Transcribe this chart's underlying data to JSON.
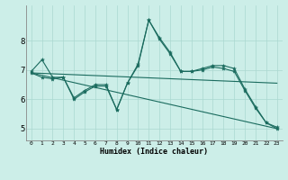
{
  "xlabel": "Humidex (Indice chaleur)",
  "background_color": "#cceee8",
  "line_color": "#1a6b5e",
  "grid_color": "#aad8d0",
  "x_ticks": [
    0,
    1,
    2,
    3,
    4,
    5,
    6,
    7,
    8,
    9,
    10,
    11,
    12,
    13,
    14,
    15,
    16,
    17,
    18,
    19,
    20,
    21,
    22,
    23
  ],
  "y_ticks": [
    5,
    6,
    7,
    8
  ],
  "ylim": [
    4.6,
    9.2
  ],
  "xlim": [
    -0.5,
    23.5
  ],
  "series": [
    {
      "has_markers": true,
      "x": [
        0,
        1,
        2,
        3,
        4,
        5,
        6,
        7,
        8,
        9,
        10,
        11,
        12,
        13,
        14,
        15,
        16,
        17,
        18,
        19,
        20,
        21,
        22,
        23
      ],
      "y": [
        6.95,
        7.35,
        6.75,
        6.75,
        6.0,
        6.25,
        6.45,
        6.45,
        5.65,
        6.55,
        7.15,
        8.7,
        8.05,
        7.55,
        6.95,
        6.95,
        7.05,
        7.15,
        7.15,
        7.05,
        6.35,
        5.75,
        5.2,
        5.05
      ]
    },
    {
      "has_markers": true,
      "x": [
        0,
        1,
        2,
        3,
        4,
        5,
        6,
        7,
        8,
        9,
        10,
        11,
        12,
        13,
        14,
        15,
        16,
        17,
        18,
        19,
        20,
        21,
        22,
        23
      ],
      "y": [
        6.9,
        6.75,
        6.7,
        6.75,
        6.05,
        6.3,
        6.5,
        6.5,
        5.65,
        6.55,
        7.2,
        8.7,
        8.1,
        7.6,
        6.95,
        6.95,
        7.0,
        7.1,
        7.05,
        6.95,
        6.3,
        5.7,
        5.2,
        5.0
      ]
    },
    {
      "has_markers": false,
      "x": [
        0,
        23
      ],
      "y": [
        6.9,
        6.55
      ]
    },
    {
      "has_markers": false,
      "x": [
        0,
        23
      ],
      "y": [
        6.9,
        5.0
      ]
    }
  ]
}
